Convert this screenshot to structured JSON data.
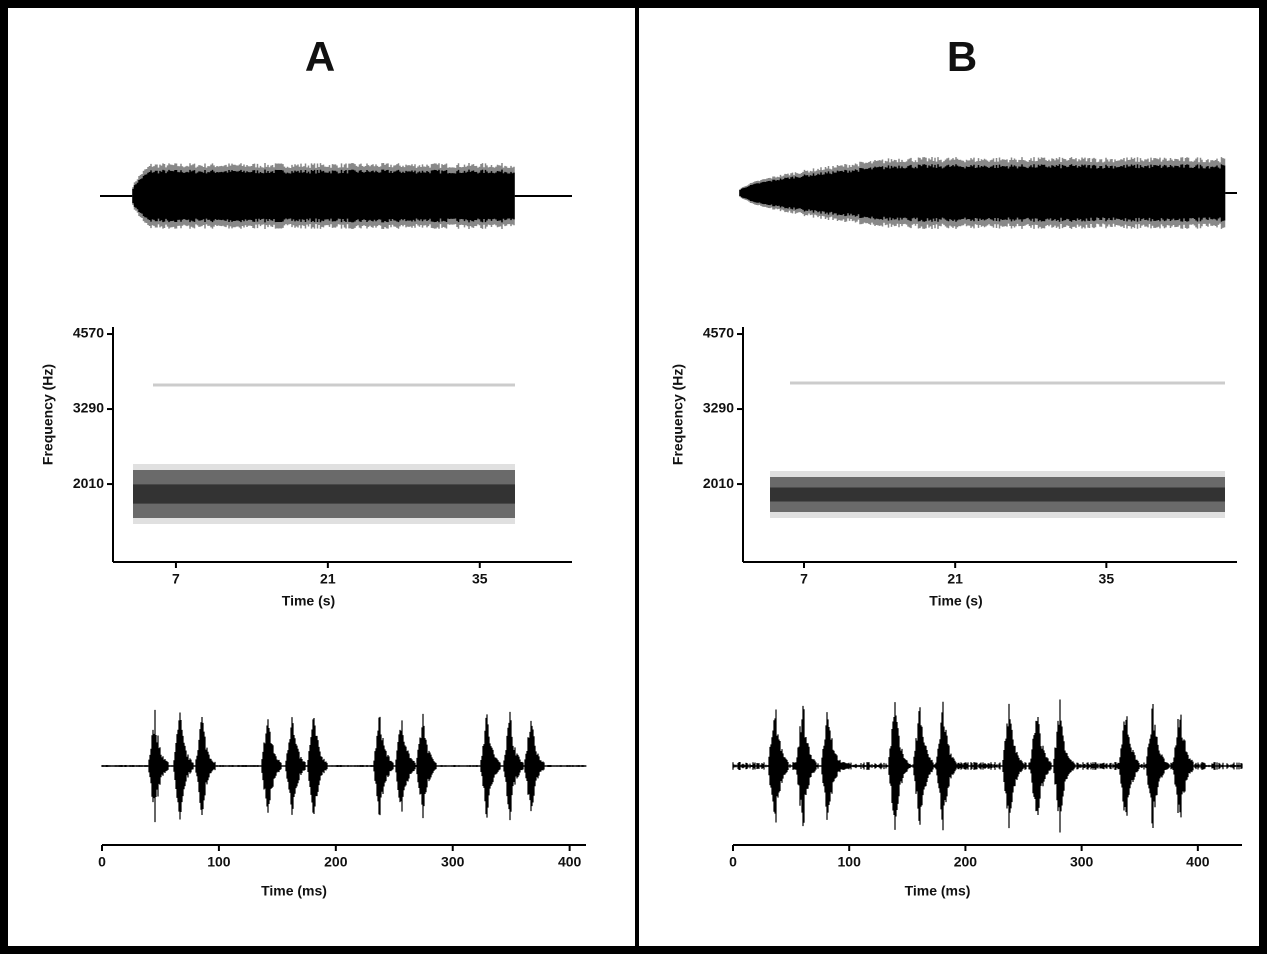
{
  "chart_data": [
    {
      "type": "spectrogram",
      "title": "A",
      "xlabel": "Time (s)",
      "ylabel": "Frequency (Hz)",
      "xlim": [
        1.2,
        43.5
      ],
      "xticks": [
        7,
        21,
        35
      ],
      "ylim": [
        680,
        4690
      ],
      "yticks": [
        2010,
        3290,
        4570
      ]
    },
    {
      "type": "oscillogram",
      "xlabel": "Time (ms)",
      "xlim": [
        0,
        414
      ],
      "xticks": [
        0,
        100,
        200,
        300,
        400
      ]
    },
    {
      "type": "spectrogram",
      "title": "B",
      "xlabel": "Time (s)",
      "ylabel": "Frequency (Hz)",
      "xlim": [
        1.35,
        47.1
      ],
      "xticks": [
        7,
        21,
        35
      ],
      "ylim": [
        680,
        4690
      ],
      "yticks": [
        2010,
        3290,
        4570
      ]
    },
    {
      "type": "oscillogram",
      "xlabel": "Time (ms)",
      "xlim": [
        0,
        438
      ],
      "xticks": [
        0,
        100,
        200,
        300,
        400
      ]
    }
  ]
}
